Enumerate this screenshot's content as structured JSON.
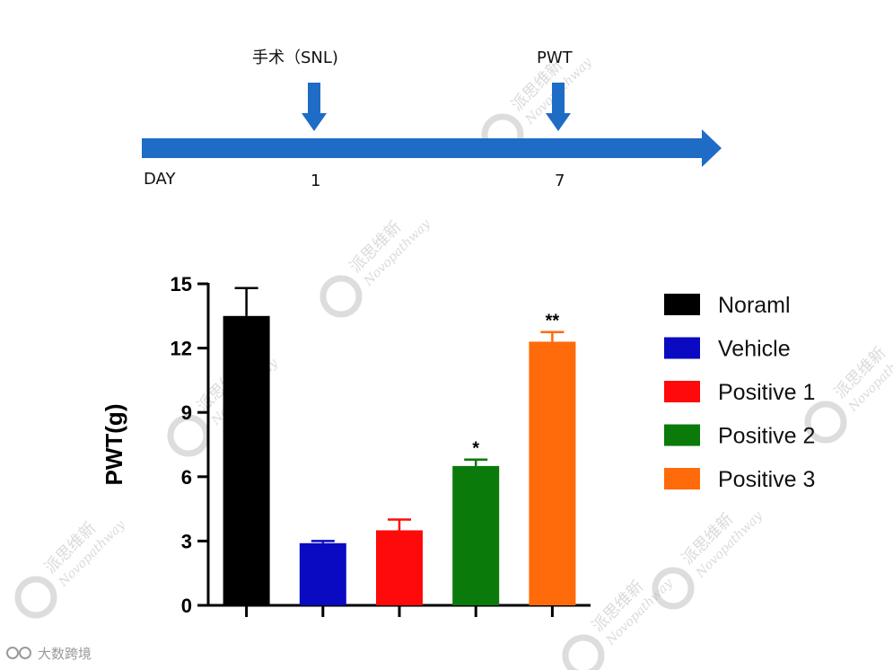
{
  "timeline": {
    "surgery_label": "手术（SNL)",
    "pwt_label": "PWT",
    "day_label": "DAY",
    "day_1": "1",
    "day_7": "7",
    "arrow_color": "#1e6cc6"
  },
  "watermark": {
    "cn_text": "派思维新",
    "en_text": "Novopathway",
    "corner_text": "大数跨境"
  },
  "chart_data": {
    "type": "bar",
    "title": "",
    "xlabel": "",
    "ylabel": "PWT(g)",
    "ylim": [
      0,
      15
    ],
    "yticks": [
      0,
      3,
      6,
      9,
      12,
      15
    ],
    "grid": false,
    "legend_position": "right",
    "categories": [
      "Noraml",
      "Vehicle",
      "Positive 1",
      "Positive 2",
      "Positive 3"
    ],
    "values": [
      13.5,
      2.9,
      3.5,
      6.5,
      12.3
    ],
    "errors": [
      1.3,
      0.1,
      0.5,
      0.3,
      0.45
    ],
    "significance": [
      "",
      "",
      "",
      "*",
      "**"
    ],
    "colors": [
      "#000000",
      "#0a0ac2",
      "#ff0a0a",
      "#0a7a0a",
      "#ff6a0a"
    ]
  }
}
